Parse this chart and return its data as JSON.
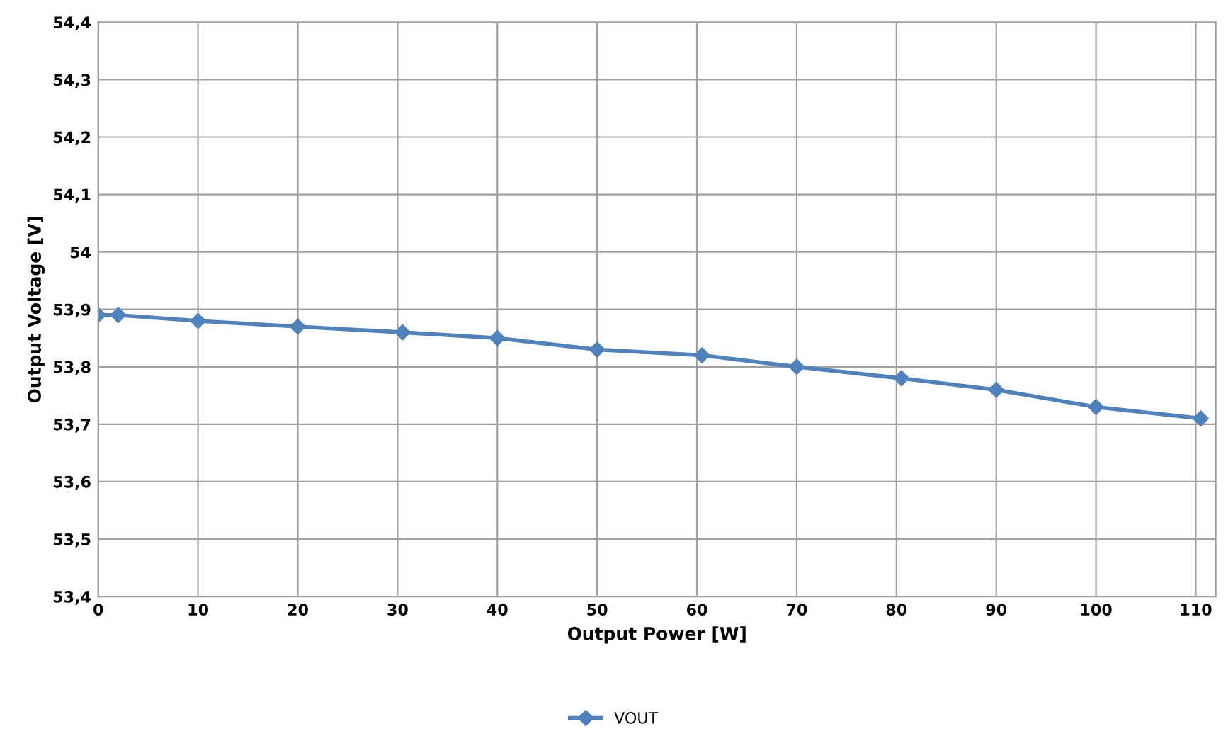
{
  "chart_data": {
    "type": "line",
    "xlabel": "Output Power [W]",
    "ylabel": "Output Voltage [V]",
    "series": [
      {
        "name": "VOUT",
        "color": "#4f81bd",
        "x": [
          0,
          2,
          10,
          20,
          30.5,
          40,
          50,
          60.5,
          70,
          80.5,
          90,
          100,
          110.5
        ],
        "values": [
          53.89,
          53.89,
          53.88,
          53.87,
          53.86,
          53.85,
          53.83,
          53.82,
          53.8,
          53.78,
          53.76,
          53.73,
          53.71
        ]
      }
    ],
    "xlim": [
      0,
      112
    ],
    "xticks": [
      0,
      10,
      20,
      30,
      40,
      50,
      60,
      70,
      80,
      90,
      100,
      110
    ],
    "ylim": [
      53.4,
      54.4
    ],
    "yticks": [
      {
        "value": 53.4,
        "label": "53,4"
      },
      {
        "value": 53.5,
        "label": "53,5"
      },
      {
        "value": 53.6,
        "label": "53,6"
      },
      {
        "value": 53.7,
        "label": "53,7"
      },
      {
        "value": 53.8,
        "label": "53,8"
      },
      {
        "value": 53.9,
        "label": "53,9"
      },
      {
        "value": 54,
        "label": "54"
      },
      {
        "value": 54.1,
        "label": "54,1"
      },
      {
        "value": 54.2,
        "label": "54,2"
      },
      {
        "value": 54.3,
        "label": "54,3"
      },
      {
        "value": 54.4,
        "label": "54,4"
      }
    ],
    "grid": true,
    "legend": "bottom",
    "marker": "diamond",
    "line_style": "solid"
  }
}
